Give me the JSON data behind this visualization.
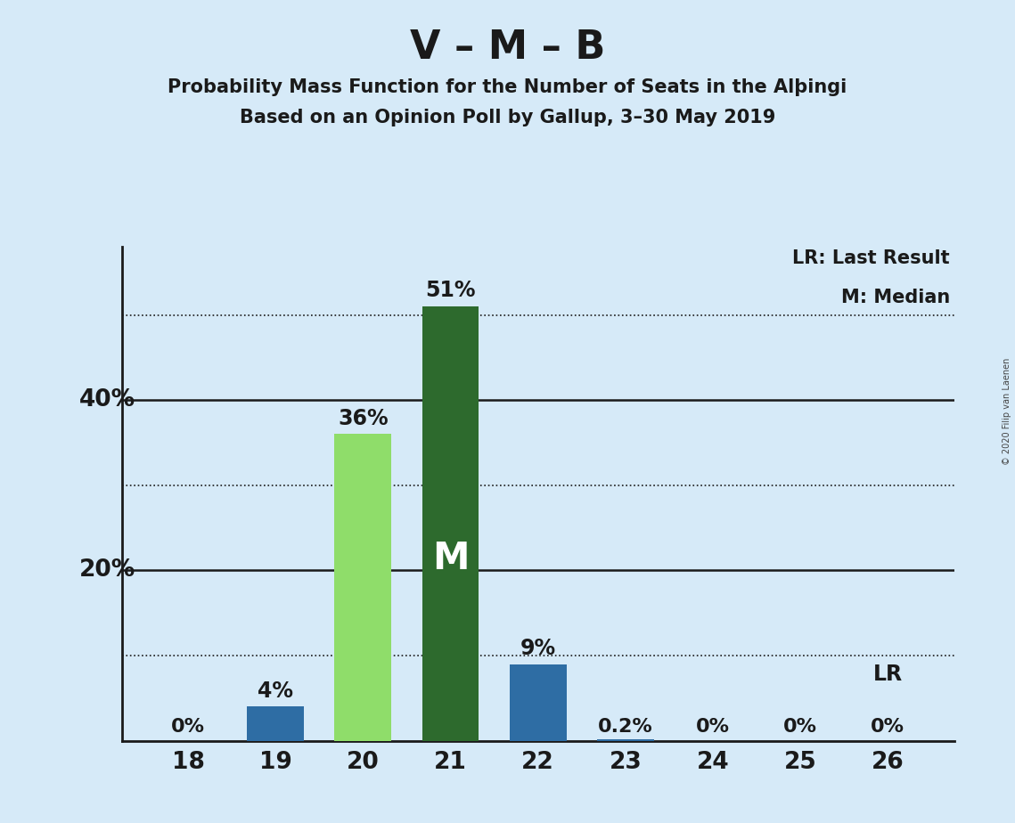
{
  "title": "V – M – B",
  "subtitle1": "Probability Mass Function for the Number of Seats in the Alþingi",
  "subtitle2": "Based on an Opinion Poll by Gallup, 3–30 May 2019",
  "copyright": "© 2020 Filip van Laenen",
  "categories": [
    18,
    19,
    20,
    21,
    22,
    23,
    24,
    25,
    26
  ],
  "values": [
    0.0,
    4.0,
    36.0,
    51.0,
    9.0,
    0.2,
    0.0,
    0.0,
    0.0
  ],
  "labels": [
    "0%",
    "4%",
    "36%",
    "51%",
    "9%",
    "0.2%",
    "0%",
    "0%",
    "0%"
  ],
  "bar_colors": [
    "#2e6da4",
    "#2e6da4",
    "#8fdd6a",
    "#2d6a2d",
    "#2e6da4",
    "#2e6da4",
    "#2e6da4",
    "#2e6da4",
    "#2e6da4"
  ],
  "median_bar_index": 3,
  "median_label": "M",
  "lr_bar_index": 8,
  "lr_label": "LR",
  "legend_lr": "LR: Last Result",
  "legend_m": "M: Median",
  "background_color": "#d6eaf8",
  "ylim": [
    0,
    58
  ],
  "ytick_solid": [
    20,
    40
  ],
  "ytick_dotted": [
    10,
    30,
    50
  ],
  "ytick_labels_pos": [
    20,
    40
  ],
  "ylabel_map": {
    "10": "",
    "20": "20%",
    "30": "",
    "40": "40%",
    "50": ""
  },
  "left_axis_labels": [
    [
      10,
      ""
    ],
    [
      20,
      "20%"
    ],
    [
      30,
      ""
    ],
    [
      40,
      "40%"
    ],
    [
      50,
      ""
    ]
  ],
  "grid_dotted_color": "#1a1a1a",
  "grid_solid_color": "#1a1a1a",
  "title_fontsize": 32,
  "subtitle_fontsize": 15,
  "axis_tick_fontsize": 19,
  "bar_label_fontsize": 17,
  "legend_fontsize": 15,
  "median_label_fontsize": 30
}
